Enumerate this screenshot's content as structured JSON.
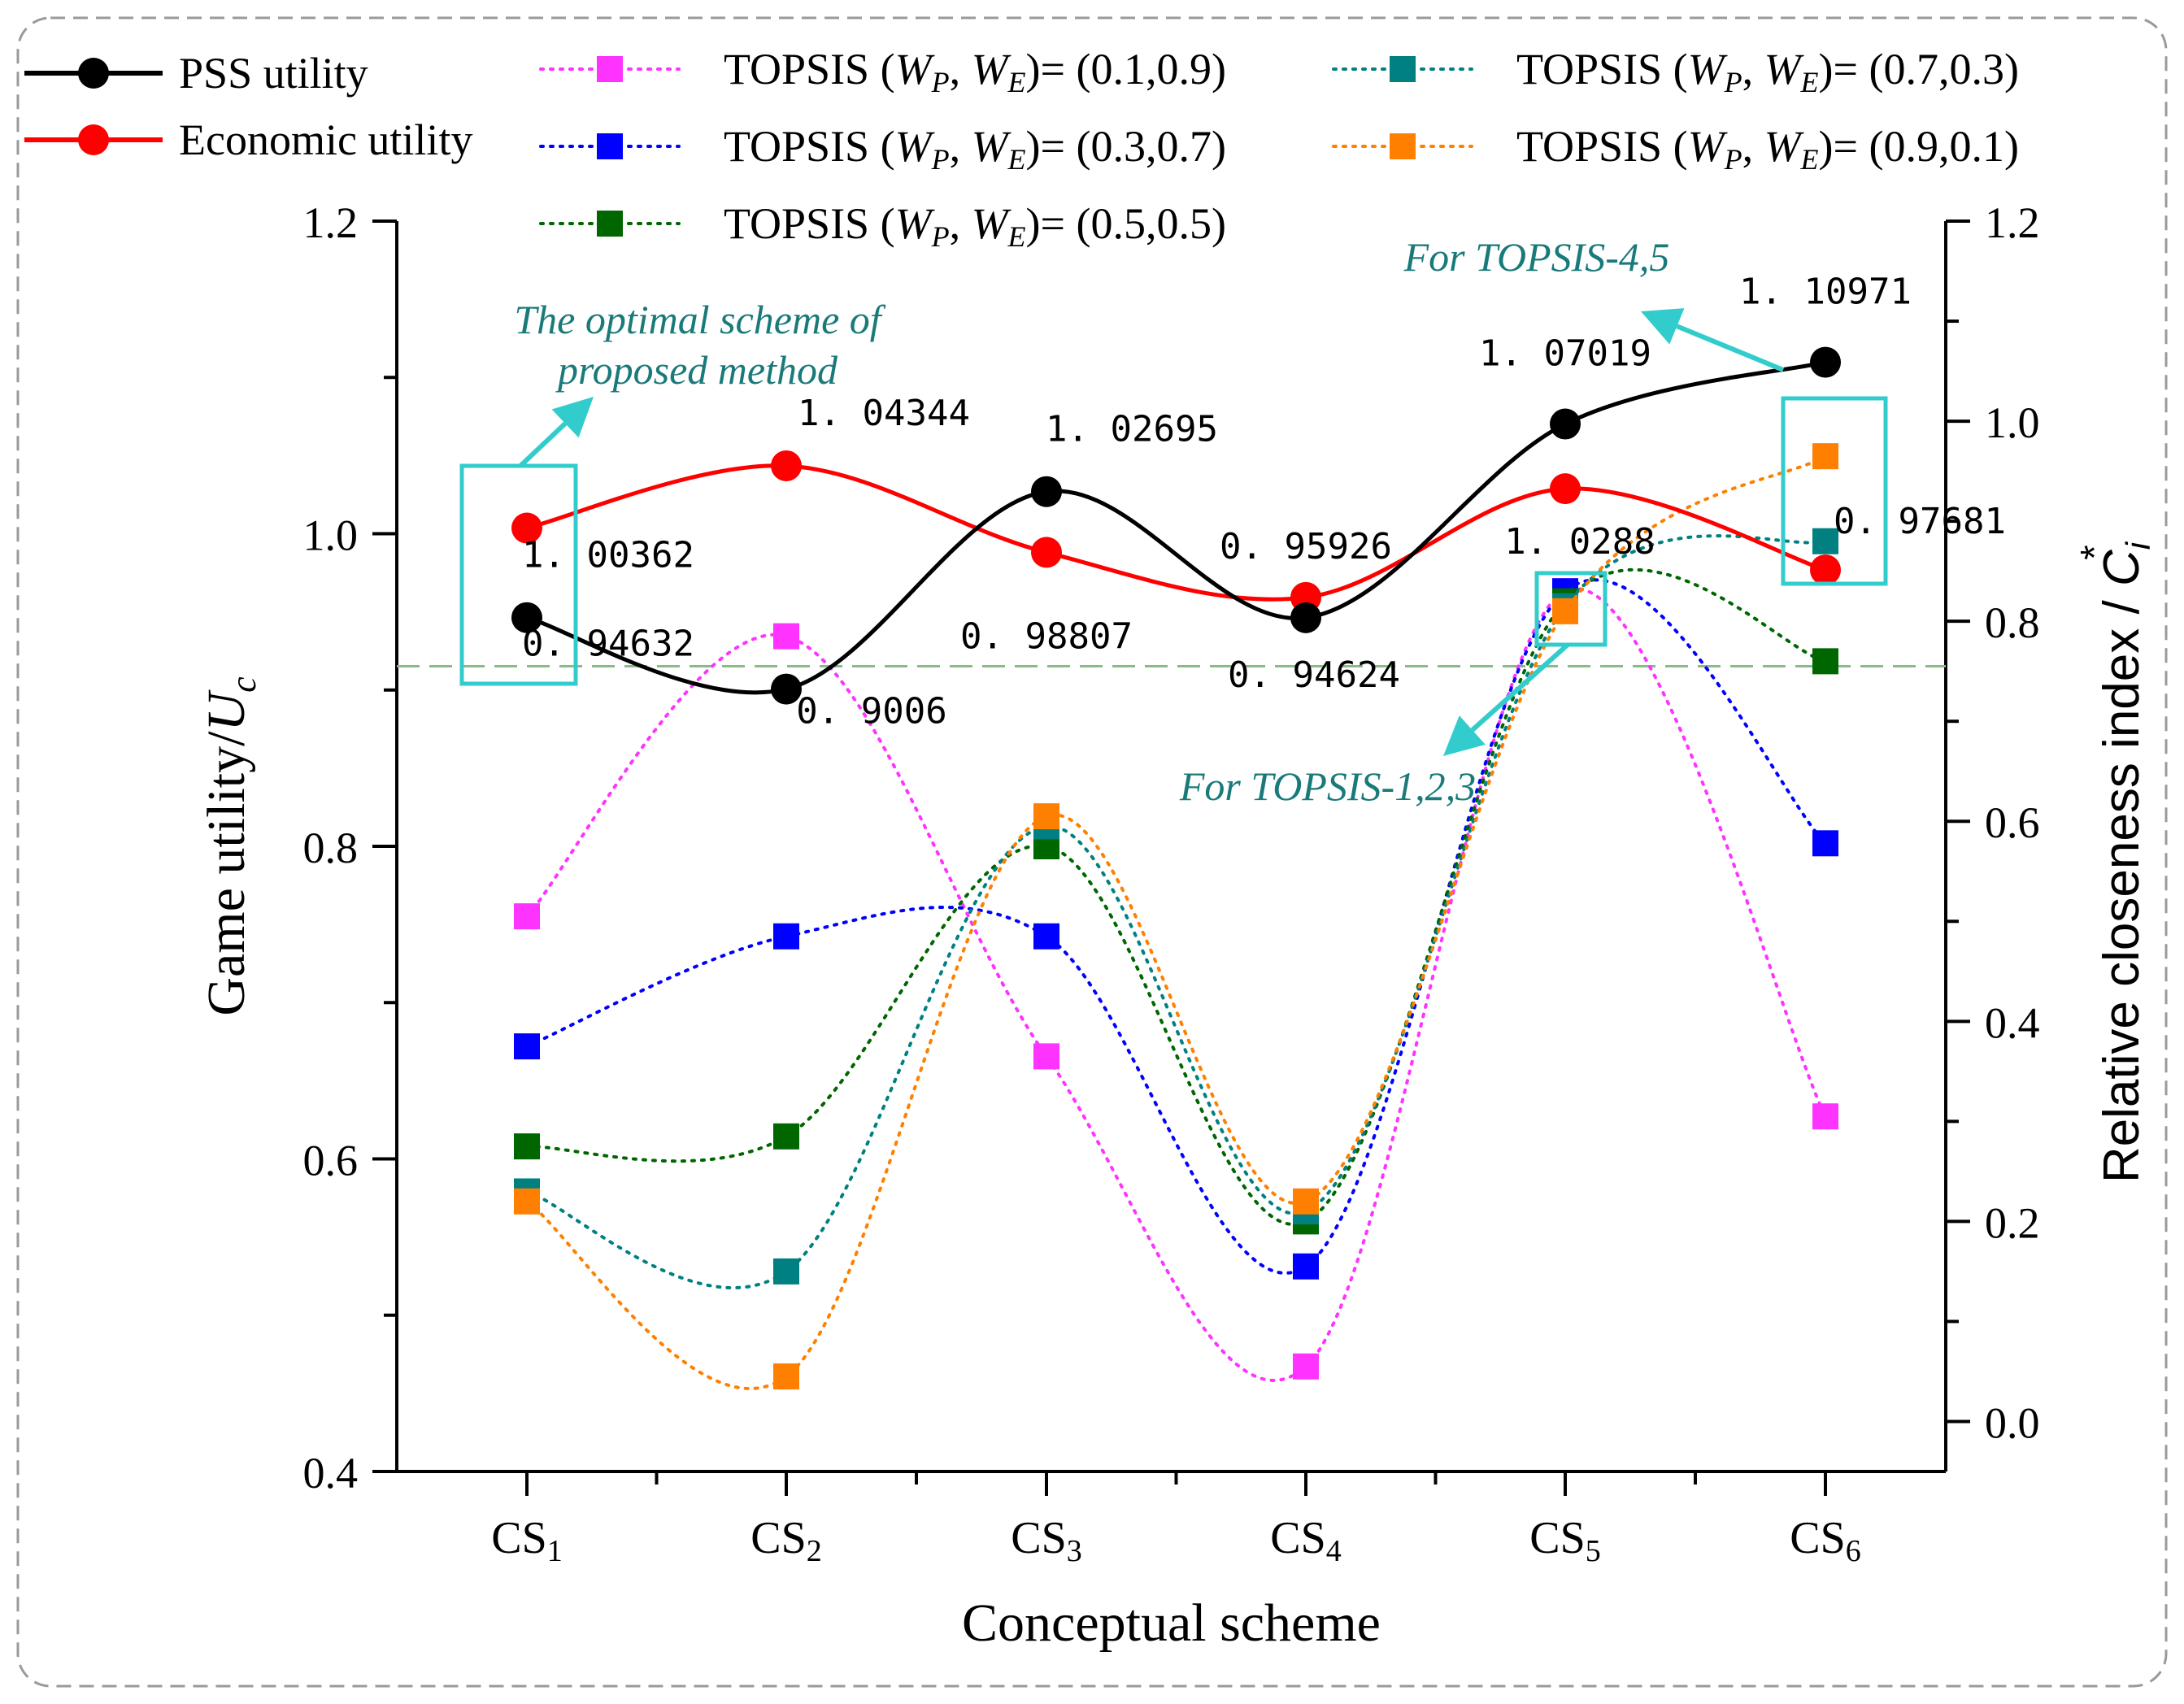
{
  "chart_data": {
    "type": "line",
    "categories": [
      "CS1",
      "CS2",
      "CS3",
      "CS4",
      "CS5",
      "CS6"
    ],
    "category_labels": [
      {
        "base": "CS",
        "sub": "1"
      },
      {
        "base": "CS",
        "sub": "2"
      },
      {
        "base": "CS",
        "sub": "3"
      },
      {
        "base": "CS",
        "sub": "4"
      },
      {
        "base": "CS",
        "sub": "5"
      },
      {
        "base": "CS",
        "sub": "6"
      }
    ],
    "xlabel": "Conceptual scheme",
    "ylabel_left": {
      "text": "Game utility/",
      "var": "U",
      "sub": "c"
    },
    "ylabel_right": {
      "text": "Relative closeness index / ",
      "var": "C",
      "sub": "i",
      "sup": "*"
    },
    "ylim_left": [
      0.4,
      1.2
    ],
    "ylim_right": [
      -0.05,
      1.2
    ],
    "yticks_left": [
      "0.4",
      "0.6",
      "0.8",
      "1.0",
      "1.2"
    ],
    "yticks_right": [
      "0.0",
      "0.2",
      "0.4",
      "0.6",
      "0.8",
      "1.0",
      "1.2"
    ],
    "series": [
      {
        "name": "PSS utility",
        "axis": "left",
        "color": "#000000",
        "style": "solid",
        "marker": "circle",
        "values": [
          0.94632,
          0.9006,
          1.02695,
          0.94624,
          1.07019,
          1.10971
        ],
        "labels": [
          "0.94632",
          "0.9006",
          "1.02695",
          "0.94624",
          "1.07019",
          "1.10971"
        ]
      },
      {
        "name": "Economic utility",
        "axis": "left",
        "color": "#ff0000",
        "style": "solid",
        "marker": "circle",
        "values": [
          1.00362,
          1.04344,
          0.98807,
          0.95926,
          1.0288,
          0.97681
        ],
        "labels": [
          "1.00362",
          "1.04344",
          "0.98807",
          "0.95926",
          "1.0288",
          "0.97681"
        ]
      },
      {
        "name": "TOPSIS (W_P, W_E)= (0.1,0.9)",
        "axis": "right",
        "color": "#ff33ff",
        "style": "dotted",
        "marker": "square",
        "values": [
          0.505,
          0.785,
          0.365,
          0.055,
          0.83,
          0.305
        ]
      },
      {
        "name": "TOPSIS (W_P, W_E)= (0.3,0.7)",
        "axis": "right",
        "color": "#0000ff",
        "style": "dotted",
        "marker": "square",
        "values": [
          0.375,
          0.485,
          0.485,
          0.155,
          0.83,
          0.578
        ]
      },
      {
        "name": "TOPSIS (W_P, W_E)= (0.5,0.5)",
        "axis": "right",
        "color": "#006600",
        "style": "dotted",
        "marker": "square",
        "values": [
          0.275,
          0.285,
          0.575,
          0.2,
          0.82,
          0.76
        ]
      },
      {
        "name": "TOPSIS (W_P, W_E)= (0.7,0.3)",
        "axis": "right",
        "color": "#008080",
        "style": "dotted",
        "marker": "square",
        "values": [
          0.23,
          0.15,
          0.595,
          0.21,
          0.815,
          0.88
        ]
      },
      {
        "name": "TOPSIS (W_P, W_E)= (0.9,0.1)",
        "axis": "right",
        "color": "#ff8000",
        "style": "dotted",
        "marker": "square",
        "values": [
          0.22,
          0.045,
          0.605,
          0.22,
          0.81,
          0.965
        ]
      }
    ],
    "legend": {
      "placement": "top",
      "items": [
        {
          "series": 0,
          "label": "PSS utility"
        },
        {
          "series": 1,
          "label": "Economic utility"
        },
        {
          "series": 2,
          "prefix": "TOPSIS (",
          "v1": "W",
          "s1": "P",
          "v2": "W",
          "s2": "E",
          "suffix": ")= (0.1,0.9)"
        },
        {
          "series": 3,
          "prefix": "TOPSIS (",
          "v1": "W",
          "s1": "P",
          "v2": "W",
          "s2": "E",
          "suffix": ")= (0.3,0.7)"
        },
        {
          "series": 4,
          "prefix": "TOPSIS (",
          "v1": "W",
          "s1": "P",
          "v2": "W",
          "s2": "E",
          "suffix": ")= (0.5,0.5)"
        },
        {
          "series": 5,
          "prefix": "TOPSIS (",
          "v1": "W",
          "s1": "P",
          "v2": "W",
          "s2": "E",
          "suffix": ")= (0.7,0.3)"
        },
        {
          "series": 6,
          "prefix": "TOPSIS (",
          "v1": "W",
          "s1": "P",
          "v2": "W",
          "s2": "E",
          "suffix": ")= (0.9,0.1)"
        }
      ]
    },
    "annotations": [
      {
        "text_lines": [
          "The optimal scheme of",
          "proposed method"
        ],
        "color": "#1a7a7a",
        "box_color": "#33cccc",
        "highlights": "CS1"
      },
      {
        "text_lines": [
          "For TOPSIS-4,5"
        ],
        "color": "#1a7a7a",
        "box_color": "#33cccc",
        "highlights": "CS6"
      },
      {
        "text_lines": [
          "For TOPSIS-1,2,3"
        ],
        "color": "#1a7a7a",
        "box_color": "#33cccc",
        "highlights": "CS5"
      }
    ],
    "reference_line": {
      "axis": "right",
      "value": 0.755,
      "color": "#88bb88",
      "style": "dashed"
    }
  }
}
